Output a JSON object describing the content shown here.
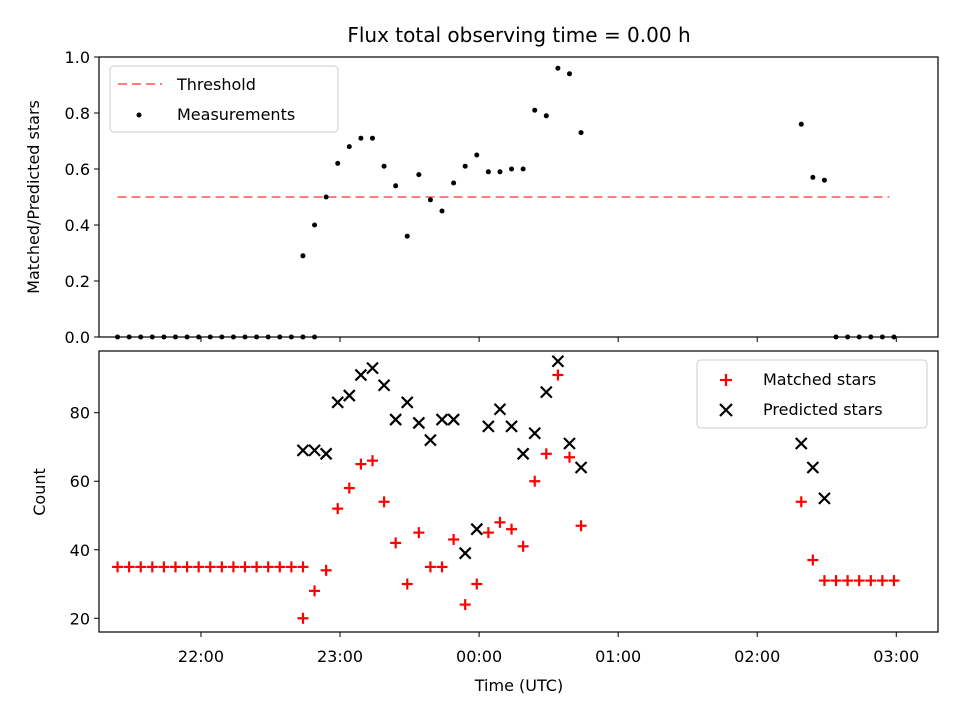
{
  "chart_data": [
    {
      "type": "scatter",
      "title": "Flux total observing time = 0.00 h",
      "xlabel": "",
      "ylabel": "Matched/Predicted stars",
      "xlim": [
        "21:16",
        "03:18"
      ],
      "ylim": [
        0,
        1.0
      ],
      "yticks": [
        "0.0",
        "0.2",
        "0.4",
        "0.6",
        "0.8",
        "1.0"
      ],
      "legend_placement": "top-left",
      "threshold": {
        "name": "Threshold",
        "value": 0.5,
        "x_start": "21:24",
        "x_end": "02:57",
        "color": "#ff7f7f"
      },
      "series": [
        {
          "name": "Measurements",
          "color": "#000000",
          "points": [
            [
              "21:24",
              0.0
            ],
            [
              "21:29",
              0.0
            ],
            [
              "21:34",
              0.0
            ],
            [
              "21:39",
              0.0
            ],
            [
              "21:44",
              0.0
            ],
            [
              "21:49",
              0.0
            ],
            [
              "21:54",
              0.0
            ],
            [
              "21:59",
              0.0
            ],
            [
              "22:04",
              0.0
            ],
            [
              "22:09",
              0.0
            ],
            [
              "22:14",
              0.0
            ],
            [
              "22:19",
              0.0
            ],
            [
              "22:24",
              0.0
            ],
            [
              "22:29",
              0.0
            ],
            [
              "22:34",
              0.0
            ],
            [
              "22:39",
              0.0
            ],
            [
              "22:44",
              0.0
            ],
            [
              "22:49",
              0.0
            ],
            [
              "22:44",
              0.29
            ],
            [
              "22:49",
              0.4
            ],
            [
              "22:54",
              0.5
            ],
            [
              "22:59",
              0.62
            ],
            [
              "23:04",
              0.68
            ],
            [
              "23:09",
              0.71
            ],
            [
              "23:14",
              0.71
            ],
            [
              "23:19",
              0.61
            ],
            [
              "23:24",
              0.54
            ],
            [
              "23:29",
              0.36
            ],
            [
              "23:34",
              0.58
            ],
            [
              "23:39",
              0.49
            ],
            [
              "23:44",
              0.45
            ],
            [
              "23:49",
              0.55
            ],
            [
              "23:54",
              0.61
            ],
            [
              "23:59",
              0.65
            ],
            [
              "00:04",
              0.59
            ],
            [
              "00:09",
              0.59
            ],
            [
              "00:14",
              0.6
            ],
            [
              "00:19",
              0.6
            ],
            [
              "00:24",
              0.81
            ],
            [
              "00:29",
              0.79
            ],
            [
              "00:34",
              0.96
            ],
            [
              "00:39",
              0.94
            ],
            [
              "00:44",
              0.73
            ],
            [
              "02:19",
              0.76
            ],
            [
              "02:24",
              0.57
            ],
            [
              "02:29",
              0.56
            ],
            [
              "02:34",
              0.0
            ],
            [
              "02:39",
              0.0
            ],
            [
              "02:44",
              0.0
            ],
            [
              "02:49",
              0.0
            ],
            [
              "02:54",
              0.0
            ],
            [
              "02:59",
              0.0
            ]
          ]
        }
      ]
    },
    {
      "type": "scatter",
      "title": "",
      "xlabel": "Time (UTC)",
      "ylabel": "Count",
      "xlim": [
        "21:16",
        "03:18"
      ],
      "ylim": [
        16,
        98
      ],
      "yticks": [
        "20",
        "40",
        "60",
        "80"
      ],
      "xticks": [
        "22:00",
        "23:00",
        "00:00",
        "01:00",
        "02:00",
        "03:00"
      ],
      "legend_placement": "top-right",
      "series": [
        {
          "name": "Matched stars",
          "color": "#ff0000",
          "marker": "plus",
          "points": [
            [
              "21:24",
              35
            ],
            [
              "21:29",
              35
            ],
            [
              "21:34",
              35
            ],
            [
              "21:39",
              35
            ],
            [
              "21:44",
              35
            ],
            [
              "21:49",
              35
            ],
            [
              "21:54",
              35
            ],
            [
              "21:59",
              35
            ],
            [
              "22:04",
              35
            ],
            [
              "22:09",
              35
            ],
            [
              "22:14",
              35
            ],
            [
              "22:19",
              35
            ],
            [
              "22:24",
              35
            ],
            [
              "22:29",
              35
            ],
            [
              "22:34",
              35
            ],
            [
              "22:39",
              35
            ],
            [
              "22:44",
              35
            ],
            [
              "22:44",
              20
            ],
            [
              "22:49",
              28
            ],
            [
              "22:54",
              34
            ],
            [
              "22:59",
              52
            ],
            [
              "23:04",
              58
            ],
            [
              "23:09",
              65
            ],
            [
              "23:14",
              66
            ],
            [
              "23:19",
              54
            ],
            [
              "23:24",
              42
            ],
            [
              "23:29",
              30
            ],
            [
              "23:34",
              45
            ],
            [
              "23:39",
              35
            ],
            [
              "23:44",
              35
            ],
            [
              "23:49",
              43
            ],
            [
              "23:54",
              24
            ],
            [
              "23:59",
              30
            ],
            [
              "00:04",
              45
            ],
            [
              "00:09",
              48
            ],
            [
              "00:14",
              46
            ],
            [
              "00:19",
              41
            ],
            [
              "00:24",
              60
            ],
            [
              "00:29",
              68
            ],
            [
              "00:34",
              91
            ],
            [
              "00:39",
              67
            ],
            [
              "00:44",
              47
            ],
            [
              "02:19",
              54
            ],
            [
              "02:24",
              37
            ],
            [
              "02:29",
              31
            ],
            [
              "02:34",
              31
            ],
            [
              "02:39",
              31
            ],
            [
              "02:44",
              31
            ],
            [
              "02:49",
              31
            ],
            [
              "02:54",
              31
            ],
            [
              "02:59",
              31
            ]
          ]
        },
        {
          "name": "Predicted stars",
          "color": "#000000",
          "marker": "x",
          "points": [
            [
              "22:44",
              69
            ],
            [
              "22:49",
              69
            ],
            [
              "22:54",
              68
            ],
            [
              "22:59",
              83
            ],
            [
              "23:04",
              85
            ],
            [
              "23:09",
              91
            ],
            [
              "23:14",
              93
            ],
            [
              "23:19",
              88
            ],
            [
              "23:24",
              78
            ],
            [
              "23:29",
              83
            ],
            [
              "23:34",
              77
            ],
            [
              "23:39",
              72
            ],
            [
              "23:44",
              78
            ],
            [
              "23:49",
              78
            ],
            [
              "23:54",
              39
            ],
            [
              "23:59",
              46
            ],
            [
              "00:04",
              76
            ],
            [
              "00:09",
              81
            ],
            [
              "00:14",
              76
            ],
            [
              "00:19",
              68
            ],
            [
              "00:24",
              74
            ],
            [
              "00:29",
              86
            ],
            [
              "00:34",
              95
            ],
            [
              "00:39",
              71
            ],
            [
              "00:44",
              64
            ],
            [
              "02:19",
              71
            ],
            [
              "02:24",
              64
            ],
            [
              "02:29",
              55
            ]
          ]
        }
      ]
    }
  ]
}
